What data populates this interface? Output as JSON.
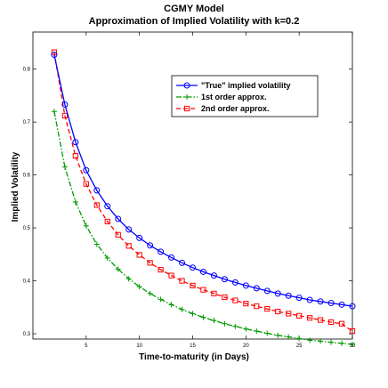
{
  "chart_data": {
    "type": "line",
    "title": "CGMY Model",
    "subtitle": "Approximation of Implied Volatility with k=0.2",
    "xlabel": "Time-to-maturity (in Days)",
    "ylabel": "Implied Volatility",
    "xlim": [
      0,
      30
    ],
    "ylim": [
      0.29,
      0.87
    ],
    "xticks": [
      5,
      10,
      15,
      20,
      25,
      30
    ],
    "yticks": [
      0.3,
      0.4,
      0.5,
      0.6,
      0.7,
      0.8
    ],
    "grid": false,
    "legend_position": "top-right",
    "x": [
      2,
      3,
      4,
      5,
      6,
      7,
      8,
      9,
      10,
      11,
      12,
      13,
      14,
      15,
      16,
      17,
      18,
      19,
      20,
      21,
      22,
      23,
      24,
      25,
      26,
      27,
      28,
      29,
      30
    ],
    "series": [
      {
        "name": "\"True\" implied volatility",
        "color": "#0000ff",
        "line": "solid",
        "marker": "circle",
        "values": [
          0.827,
          0.733,
          0.662,
          0.609,
          0.571,
          0.541,
          0.517,
          0.497,
          0.481,
          0.467,
          0.455,
          0.444,
          0.434,
          0.425,
          0.417,
          0.41,
          0.403,
          0.397,
          0.391,
          0.386,
          0.381,
          0.376,
          0.372,
          0.368,
          0.364,
          0.361,
          0.358,
          0.355,
          0.352
        ]
      },
      {
        "name": "1st order approx.",
        "color": "#009900",
        "line": "dash-dot",
        "marker": "plus",
        "values": [
          0.72,
          0.615,
          0.549,
          0.504,
          0.469,
          0.443,
          0.422,
          0.404,
          0.389,
          0.376,
          0.365,
          0.355,
          0.346,
          0.338,
          0.331,
          0.325,
          0.319,
          0.314,
          0.309,
          0.305,
          0.301,
          0.297,
          0.294,
          0.291,
          0.288,
          0.286,
          0.284,
          0.282,
          0.28
        ]
      },
      {
        "name": "2nd order approx.",
        "color": "#ff0000",
        "line": "dashed",
        "marker": "square",
        "values": [
          0.832,
          0.712,
          0.636,
          0.583,
          0.543,
          0.512,
          0.487,
          0.466,
          0.449,
          0.434,
          0.421,
          0.41,
          0.4,
          0.391,
          0.383,
          0.376,
          0.369,
          0.363,
          0.357,
          0.352,
          0.347,
          0.342,
          0.338,
          0.334,
          0.33,
          0.326,
          0.322,
          0.319,
          0.305
        ]
      }
    ]
  }
}
